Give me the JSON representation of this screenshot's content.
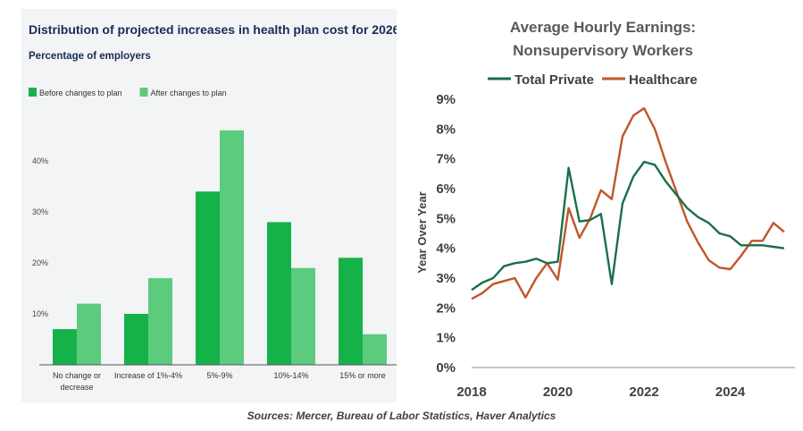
{
  "sources": "Sources: Mercer, Bureau of Labor Statistics, Haver Analytics",
  "chart_data": [
    {
      "type": "bar",
      "title": "Distribution of projected increases in health plan cost for 2026",
      "subtitle": "Percentage of employers",
      "categories": [
        "No change or decrease",
        "Increase of 1%-4%",
        "5%-9%",
        "10%-14%",
        "15% or more"
      ],
      "series": [
        {
          "name": "Before changes to plan",
          "color": "#15b24a",
          "values": [
            7,
            10,
            34,
            28,
            21
          ]
        },
        {
          "name": "After changes to plan",
          "color": "#5ccb7d",
          "values": [
            12,
            17,
            46,
            19,
            6
          ]
        }
      ],
      "yticks": [
        "10%",
        "20%",
        "30%",
        "40%"
      ],
      "ytick_values": [
        10,
        20,
        30,
        40
      ],
      "ylim": [
        0,
        51
      ],
      "legend": "top-left",
      "grid": false
    },
    {
      "type": "line",
      "title_lines": [
        "Average Hourly Earnings:",
        "Nonsupervisory Workers"
      ],
      "ylabel": "Year Over Year",
      "yticks": [
        "0%",
        "1%",
        "2%",
        "3%",
        "4%",
        "5%",
        "6%",
        "7%",
        "8%",
        "9%"
      ],
      "ylim": [
        0,
        9
      ],
      "xlim": [
        2018,
        2025.5
      ],
      "xticks": [
        "2018",
        "2020",
        "2022",
        "2024"
      ],
      "xtick_values": [
        2018,
        2020,
        2022,
        2024
      ],
      "legend": "top",
      "grid": false,
      "series": [
        {
          "name": "Total Private",
          "color": "#1b6e4b",
          "points": [
            [
              2018,
              2.6
            ],
            [
              2018.25,
              2.85
            ],
            [
              2018.5,
              3.0
            ],
            [
              2018.75,
              3.4
            ],
            [
              2019,
              3.5
            ],
            [
              2019.25,
              3.55
            ],
            [
              2019.5,
              3.65
            ],
            [
              2019.75,
              3.5
            ],
            [
              2020,
              3.55
            ],
            [
              2020.25,
              6.7
            ],
            [
              2020.5,
              4.9
            ],
            [
              2020.75,
              4.95
            ],
            [
              2021,
              5.15
            ],
            [
              2021.25,
              2.8
            ],
            [
              2021.5,
              5.5
            ],
            [
              2021.75,
              6.4
            ],
            [
              2022,
              6.9
            ],
            [
              2022.25,
              6.8
            ],
            [
              2022.5,
              6.25
            ],
            [
              2022.75,
              5.8
            ],
            [
              2023,
              5.35
            ],
            [
              2023.25,
              5.05
            ],
            [
              2023.5,
              4.85
            ],
            [
              2023.75,
              4.5
            ],
            [
              2024,
              4.4
            ],
            [
              2024.25,
              4.1
            ],
            [
              2024.5,
              4.1
            ],
            [
              2024.75,
              4.1
            ],
            [
              2025,
              4.05
            ],
            [
              2025.25,
              4.0
            ]
          ]
        },
        {
          "name": "Healthcare",
          "color": "#c0562a",
          "points": [
            [
              2018,
              2.3
            ],
            [
              2018.25,
              2.5
            ],
            [
              2018.5,
              2.8
            ],
            [
              2018.75,
              2.9
            ],
            [
              2019,
              3.0
            ],
            [
              2019.25,
              2.35
            ],
            [
              2019.5,
              3.0
            ],
            [
              2019.75,
              3.5
            ],
            [
              2020,
              2.95
            ],
            [
              2020.25,
              5.35
            ],
            [
              2020.5,
              4.35
            ],
            [
              2020.75,
              5.0
            ],
            [
              2021,
              5.95
            ],
            [
              2021.25,
              5.65
            ],
            [
              2021.5,
              7.75
            ],
            [
              2021.75,
              8.45
            ],
            [
              2022,
              8.7
            ],
            [
              2022.25,
              8.0
            ],
            [
              2022.5,
              6.9
            ],
            [
              2022.75,
              5.9
            ],
            [
              2023,
              4.9
            ],
            [
              2023.25,
              4.2
            ],
            [
              2023.5,
              3.6
            ],
            [
              2023.75,
              3.35
            ],
            [
              2024,
              3.3
            ],
            [
              2024.25,
              3.75
            ],
            [
              2024.5,
              4.25
            ],
            [
              2024.75,
              4.25
            ],
            [
              2025,
              4.85
            ],
            [
              2025.25,
              4.55
            ]
          ]
        }
      ]
    }
  ]
}
